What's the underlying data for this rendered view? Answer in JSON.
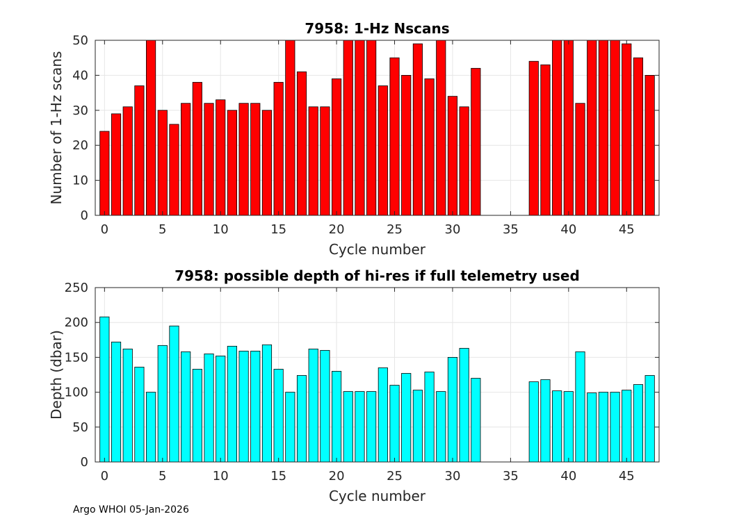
{
  "chart_data": [
    {
      "type": "bar",
      "title": "7958: 1-Hz Nscans",
      "xlabel": "Cycle number",
      "ylabel": "Number of 1-Hz scans",
      "bar_color": "#ff0000",
      "grid": true,
      "xlim": [
        -0.8,
        47.8
      ],
      "ylim": [
        0,
        50
      ],
      "xticks": [
        0,
        5,
        10,
        15,
        20,
        25,
        30,
        35,
        40,
        45
      ],
      "yticks": [
        0,
        10,
        20,
        30,
        40,
        50
      ],
      "x": [
        0,
        1,
        2,
        3,
        4,
        5,
        6,
        7,
        8,
        9,
        10,
        11,
        12,
        13,
        14,
        15,
        16,
        17,
        18,
        19,
        20,
        21,
        22,
        23,
        24,
        25,
        26,
        27,
        28,
        29,
        30,
        31,
        32,
        37,
        38,
        39,
        40,
        41,
        42,
        43,
        44,
        45,
        46,
        47
      ],
      "values": [
        24,
        29,
        31,
        37,
        50,
        30,
        26,
        32,
        38,
        32,
        33,
        30,
        32,
        32,
        30,
        38,
        50,
        41,
        31,
        31,
        39,
        50,
        50,
        50,
        37,
        45,
        40,
        49,
        39,
        50,
        34,
        31,
        42,
        44,
        43,
        50,
        50,
        32,
        50,
        50,
        50,
        49,
        45,
        40
      ]
    },
    {
      "type": "bar",
      "title": "7958: possible depth of hi-res if full telemetry used",
      "xlabel": "Cycle number",
      "ylabel": "Depth (dbar)",
      "bar_color": "#00ffff",
      "grid": true,
      "xlim": [
        -0.8,
        47.8
      ],
      "ylim": [
        0,
        250
      ],
      "xticks": [
        0,
        5,
        10,
        15,
        20,
        25,
        30,
        35,
        40,
        45
      ],
      "yticks": [
        0,
        50,
        100,
        150,
        200,
        250
      ],
      "x": [
        0,
        1,
        2,
        3,
        4,
        5,
        6,
        7,
        8,
        9,
        10,
        11,
        12,
        13,
        14,
        15,
        16,
        17,
        18,
        19,
        20,
        21,
        22,
        23,
        24,
        25,
        26,
        27,
        28,
        29,
        30,
        31,
        32,
        37,
        38,
        39,
        40,
        41,
        42,
        43,
        44,
        45,
        46,
        47
      ],
      "values": [
        208,
        172,
        162,
        136,
        100,
        167,
        195,
        158,
        133,
        155,
        152,
        166,
        159,
        159,
        168,
        133,
        100,
        124,
        162,
        160,
        130,
        101,
        101,
        101,
        135,
        110,
        127,
        103,
        129,
        101,
        150,
        163,
        120,
        115,
        118,
        102,
        101,
        158,
        99,
        100,
        100,
        103,
        111,
        124
      ]
    }
  ],
  "footer": "Argo WHOI 05-Jan-2026"
}
